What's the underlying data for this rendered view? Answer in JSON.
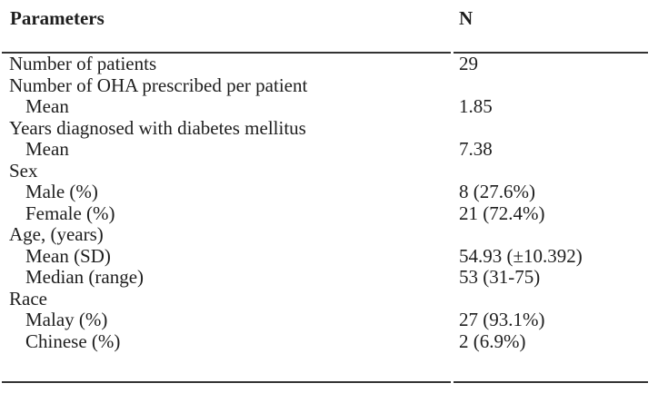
{
  "colors": {
    "background": "#ffffff",
    "text": "#1e1e1e",
    "rule": "#333333"
  },
  "table": {
    "header": {
      "parameters": "Parameters",
      "n": "N"
    },
    "rows": [
      {
        "label": "Number of patients",
        "value": "29",
        "indent": false
      },
      {
        "label": "Number of OHA prescribed per patient",
        "value": "",
        "indent": false
      },
      {
        "label": "Mean",
        "value": "1.85",
        "indent": true
      },
      {
        "label": "Years diagnosed with diabetes mellitus",
        "value": "",
        "indent": false
      },
      {
        "label": "Mean",
        "value": "7.38",
        "indent": true
      },
      {
        "label": "Sex",
        "value": "",
        "indent": false
      },
      {
        "label": "Male (%)",
        "value": "8 (27.6%)",
        "indent": true
      },
      {
        "label": "Female (%)",
        "value": "21 (72.4%)",
        "indent": true
      },
      {
        "label": "Age, (years)",
        "value": "",
        "indent": false
      },
      {
        "label": "Mean (SD)",
        "value": "54.93 (±10.392)",
        "indent": true
      },
      {
        "label": "Median (range)",
        "value": "53 (31-75)",
        "indent": true
      },
      {
        "label": "Race",
        "value": "",
        "indent": false
      },
      {
        "label": "Malay (%)",
        "value": "27 (93.1%)",
        "indent": true
      },
      {
        "label": "Chinese (%)",
        "value": "2 (6.9%)",
        "indent": true
      }
    ]
  }
}
